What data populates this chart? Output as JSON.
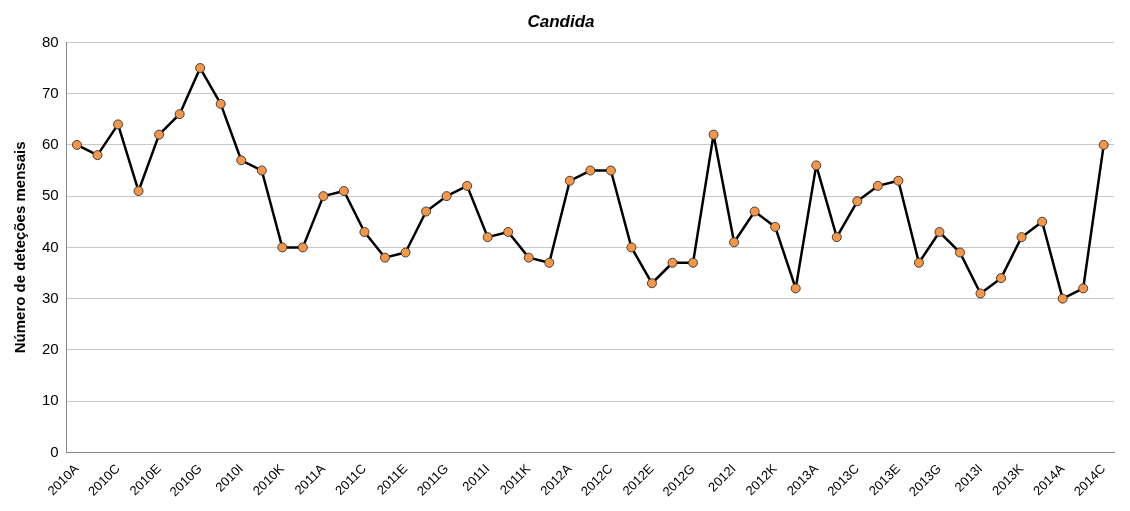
{
  "chart_data": {
    "type": "line",
    "title": "Candida",
    "ylabel": "Número de deteções mensais",
    "categories": [
      "2010A",
      null,
      "2010C",
      null,
      "2010E",
      null,
      "2010G",
      null,
      "2010I",
      null,
      "2010K",
      null,
      "2011A",
      null,
      "2011C",
      null,
      "2011E",
      null,
      "2011G",
      null,
      "2011I",
      null,
      "2011K",
      null,
      "2012A",
      null,
      "2012C",
      null,
      "2012E",
      null,
      "2012G",
      null,
      "2012I",
      null,
      "2012K",
      null,
      "2013A",
      null,
      "2013C",
      null,
      "2013E",
      null,
      "2013G",
      null,
      "2013I",
      null,
      "2013K",
      null,
      "2014A",
      null,
      "2014C"
    ],
    "series": [
      {
        "color": "#000000",
        "colors": [
          "#f79646",
          "#f79646",
          "#f79646",
          "#f79646",
          "#f79646",
          "#f79646",
          "#f79646",
          "#f79646",
          "#f79646",
          "#f79646",
          "#f79646",
          "#f79646",
          "#f79646",
          "#f79646",
          "#f79646",
          "#f79646",
          "#f79646",
          "#f79646",
          "#f79646",
          "#f79646",
          "#f79646",
          "#f79646",
          "#f79646",
          "#f79646",
          "#f79646",
          "#f79646",
          "#f79646",
          "#f79646",
          "#f79646",
          "#f79646",
          "#f79646",
          "#f79646",
          "#f79646",
          "#f79646",
          "#f79646",
          "#f79646",
          "#f79646",
          "#f79646",
          "#f79646",
          "#f79646",
          "#f79646",
          "#f79646",
          "#f79646",
          "#f79646",
          "#f79646",
          "#f79646",
          "#f79646",
          "#f79646",
          "#f79646",
          "#f79646",
          "#f79646"
        ],
        "values": [
          60,
          58,
          64,
          51,
          62,
          66,
          75,
          68,
          57,
          55,
          40,
          40,
          50,
          51,
          43,
          38,
          39,
          47,
          50,
          52,
          42,
          43,
          38,
          37,
          53,
          55,
          55,
          40,
          33,
          37,
          37,
          62,
          41,
          47,
          44,
          32,
          56,
          42,
          49,
          52,
          53,
          37,
          43,
          39,
          31,
          34,
          42,
          45,
          30,
          32,
          60
        ]
      }
    ],
    "ylim": [
      0,
      80
    ],
    "yticks": [
      0,
      10,
      20,
      30,
      40,
      50,
      60,
      70,
      80
    ],
    "grid": "y",
    "marker": "circle",
    "line_style": "solid"
  }
}
